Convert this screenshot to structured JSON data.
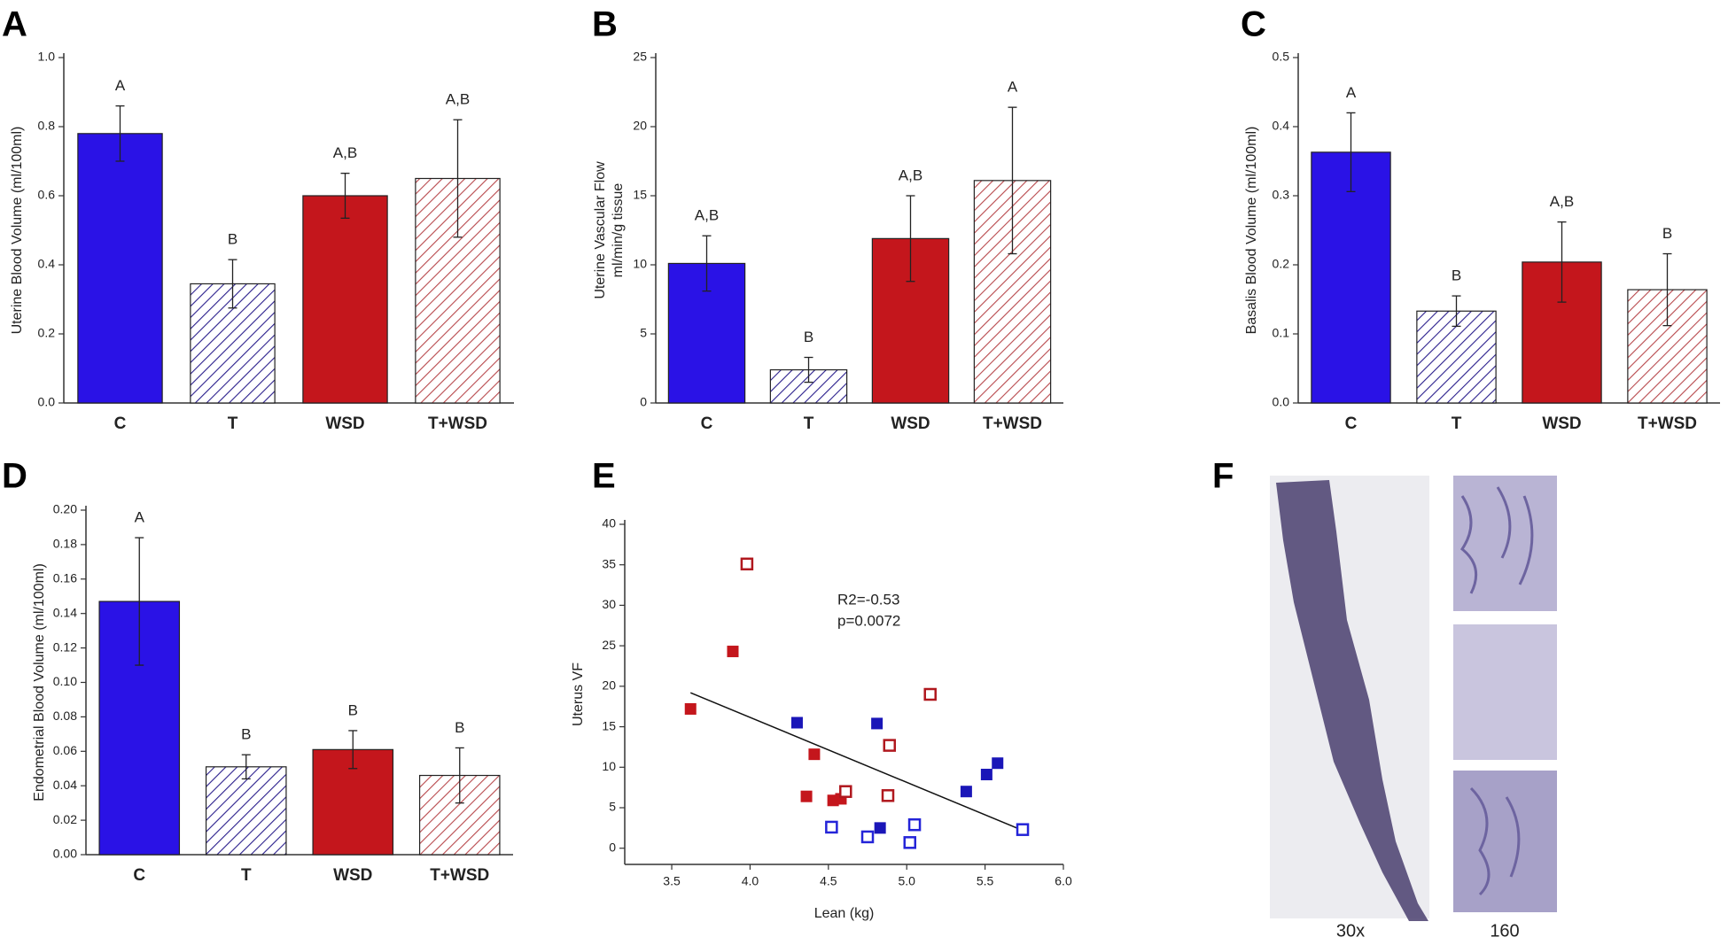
{
  "chart_data": [
    {
      "type": "bar",
      "panel_label": "A",
      "ylabel": "Uterine Blood Volume (ml/100ml)",
      "categories": [
        "C",
        "T",
        "WSD",
        "T+WSD"
      ],
      "values": [
        0.78,
        0.345,
        0.6,
        0.65
      ],
      "errors": [
        0.08,
        0.07,
        0.065,
        0.17
      ],
      "sig_labels": [
        "A",
        "B",
        "A,B",
        "A,B"
      ],
      "colors": [
        "#2a12e6",
        "#2a1e8c",
        "#c4161c",
        "#b8484c"
      ],
      "hatched": [
        false,
        true,
        false,
        true
      ],
      "ylim": [
        0,
        1
      ],
      "yticks": [
        {
          "value": 0,
          "label": "0.0"
        },
        {
          "value": 0.2,
          "label": "0.2"
        },
        {
          "value": 0.4,
          "label": "0.4"
        },
        {
          "value": 0.6,
          "label": "0.6"
        },
        {
          "value": 0.8,
          "label": "0.8"
        },
        {
          "value": 1,
          "label": "1.0"
        }
      ]
    },
    {
      "type": "bar",
      "panel_label": "B",
      "ylabel": [
        "Uterine Vascular Flow",
        "ml/min/g tissue"
      ],
      "categories": [
        "C",
        "T",
        "WSD",
        "T+WSD"
      ],
      "values": [
        10.1,
        2.4,
        11.9,
        16.1
      ],
      "errors": [
        2.0,
        0.9,
        3.1,
        5.3
      ],
      "sig_labels": [
        "A,B",
        "B",
        "A,B",
        "A"
      ],
      "colors": [
        "#2a12e6",
        "#2a1e8c",
        "#c4161c",
        "#b8484c"
      ],
      "hatched": [
        false,
        true,
        false,
        true
      ],
      "ylim": [
        0,
        25
      ],
      "yticks": [
        0,
        5,
        10,
        15,
        20,
        25
      ]
    },
    {
      "type": "bar",
      "panel_label": "C",
      "ylabel": "Basalis Blood Volume (ml/100ml)",
      "categories": [
        "C",
        "T",
        "WSD",
        "T+WSD"
      ],
      "values": [
        0.363,
        0.133,
        0.204,
        0.164
      ],
      "errors": [
        0.057,
        0.022,
        0.058,
        0.052
      ],
      "sig_labels": [
        "A",
        "B",
        "A,B",
        "B"
      ],
      "colors": [
        "#2a12e6",
        "#2a1e8c",
        "#c4161c",
        "#b8484c"
      ],
      "hatched": [
        false,
        true,
        false,
        true
      ],
      "ylim": [
        0,
        0.5
      ],
      "yticks": [
        {
          "value": 0,
          "label": "0.0"
        },
        0.1,
        0.2,
        0.3,
        0.4,
        0.5
      ]
    },
    {
      "type": "bar",
      "panel_label": "D",
      "ylabel": "Endometrial Blood Volume (ml/100ml)",
      "categories": [
        "C",
        "T",
        "WSD",
        "T+WSD"
      ],
      "values": [
        0.147,
        0.051,
        0.061,
        0.046
      ],
      "errors": [
        0.037,
        0.007,
        0.011,
        0.016
      ],
      "sig_labels": [
        "A",
        "B",
        "B",
        "B"
      ],
      "colors": [
        "#2a12e6",
        "#2a1e8c",
        "#c4161c",
        "#b8484c"
      ],
      "hatched": [
        false,
        true,
        false,
        true
      ],
      "ylim": [
        0,
        0.2
      ],
      "yticks": [
        {
          "value": 0,
          "label": "0.00"
        },
        0.02,
        0.04,
        0.06,
        0.08,
        {
          "value": 0.1,
          "label": "0.10"
        },
        0.12,
        0.14,
        0.16,
        0.18,
        {
          "value": 0.2,
          "label": "0.20"
        }
      ]
    },
    {
      "type": "scatter",
      "panel_label": "E",
      "xlabel": "Lean (kg)",
      "ylabel": "Uterus VF",
      "annotations": [
        "R2=-0.53",
        "p=0.0072"
      ],
      "series": [
        {
          "color": "#1a16b8",
          "filled": true,
          "x": [
            4.3,
            4.81,
            5.38,
            5.51,
            5.58,
            4.83
          ],
          "y": [
            15.5,
            15.4,
            7.0,
            9.1,
            10.5,
            2.5
          ]
        },
        {
          "color": "#2424d8",
          "filled": false,
          "x": [
            4.52,
            4.75,
            5.05,
            5.02,
            5.74
          ],
          "y": [
            2.6,
            1.4,
            2.9,
            0.7,
            2.3
          ]
        },
        {
          "color": "#c4161c",
          "filled": true,
          "x": [
            3.62,
            3.89,
            4.41,
            4.36,
            4.53,
            4.58
          ],
          "y": [
            17.2,
            24.3,
            11.6,
            6.4,
            5.9,
            6.1
          ]
        },
        {
          "color": "#b0181e",
          "filled": false,
          "x": [
            3.98,
            4.61,
            4.89,
            4.88,
            5.15
          ],
          "y": [
            35.1,
            7.0,
            12.7,
            6.5,
            19.0
          ]
        }
      ],
      "trendline": {
        "x": [
          3.62,
          5.74
        ],
        "y": [
          19.2,
          2.2
        ]
      },
      "xlim": [
        3.2,
        6.0
      ],
      "xticks": [
        3.5,
        {
          "value": 4,
          "label": "4.0"
        },
        4.5,
        {
          "value": 5,
          "label": "5.0"
        },
        5.5,
        {
          "value": 6,
          "label": "6.0"
        }
      ],
      "ylim": [
        -2,
        40
      ],
      "yticks": [
        0,
        5,
        10,
        15,
        20,
        25,
        30,
        35,
        40
      ]
    }
  ],
  "image_panel": {
    "panel_label": "F",
    "captions": [
      "30x",
      "160"
    ]
  }
}
